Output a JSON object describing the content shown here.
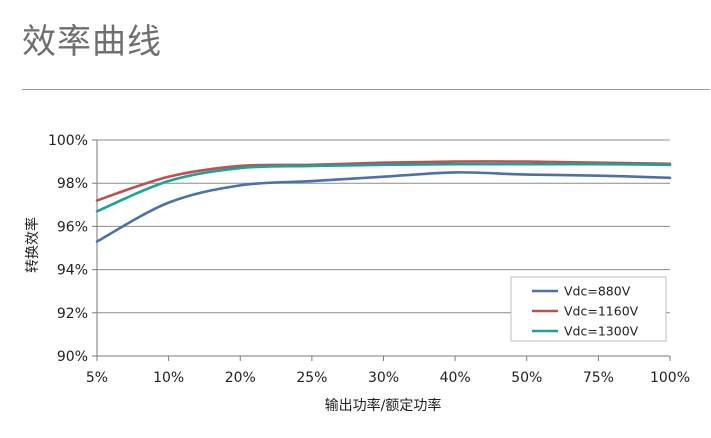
{
  "page": {
    "title": "效率曲线"
  },
  "chart_data": {
    "type": "line",
    "title": "",
    "xlabel": "输出功率/额定功率",
    "ylabel": "转换效率",
    "categories": [
      "5%",
      "10%",
      "20%",
      "25%",
      "30%",
      "40%",
      "50%",
      "75%",
      "100%"
    ],
    "ylim": [
      90,
      100
    ],
    "yticks": [
      90,
      92,
      94,
      96,
      98,
      100
    ],
    "ytick_labels": [
      "90%",
      "92%",
      "94%",
      "96%",
      "98%",
      "100%"
    ],
    "grid": "horizontal",
    "legend_position": "bottom-right",
    "series": [
      {
        "name": "Vdc=880V",
        "color": "#4a72a8",
        "values": [
          95.3,
          97.1,
          97.9,
          98.1,
          98.3,
          98.5,
          98.4,
          98.35,
          98.25
        ]
      },
      {
        "name": "Vdc=1160V",
        "color": "#c0504d",
        "values": [
          97.2,
          98.3,
          98.8,
          98.85,
          98.95,
          99.0,
          99.0,
          98.95,
          98.9
        ]
      },
      {
        "name": "Vdc=1300V",
        "color": "#1aa398",
        "values": [
          96.7,
          98.1,
          98.7,
          98.8,
          98.85,
          98.88,
          98.88,
          98.88,
          98.85
        ]
      }
    ]
  }
}
